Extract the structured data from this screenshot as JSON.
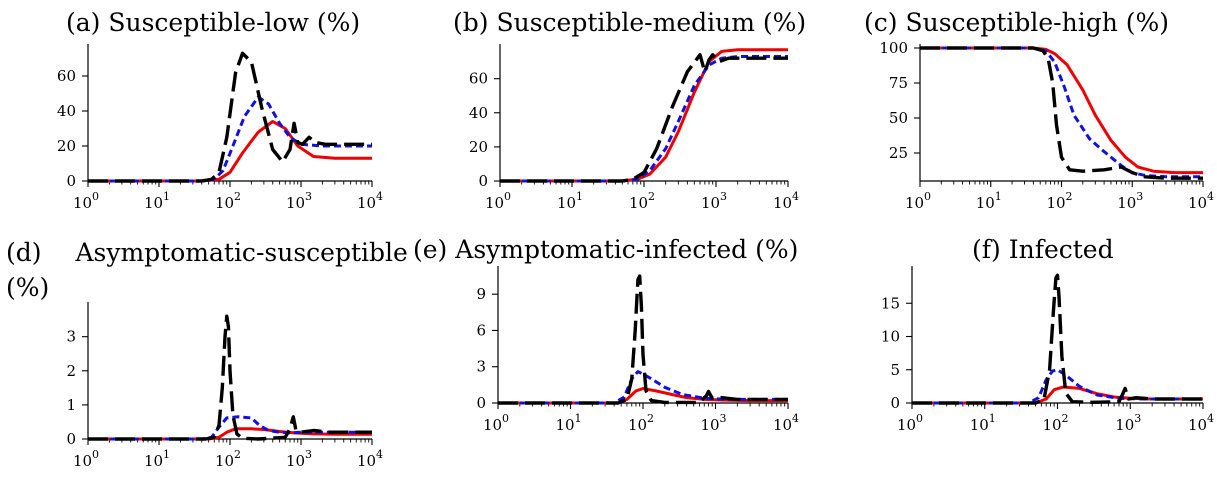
{
  "figure": {
    "layout": "2x3 grid of small multiples",
    "series_styles": [
      {
        "color": "#ee0000",
        "dash": "solid"
      },
      {
        "color": "#1010e0",
        "dash": "short-dash"
      },
      {
        "color": "#000000",
        "dash": "long-dash"
      }
    ]
  },
  "chart_data": [
    {
      "type": "line",
      "title_tag": "(a)",
      "title": "Susceptible-low (%)",
      "xscale": "log",
      "xlim": [
        1,
        10000
      ],
      "xticks": [
        "10^0",
        "10^1",
        "10^2",
        "10^3",
        "10^4"
      ],
      "ylim": [
        0,
        76
      ],
      "yticks": [
        0,
        20,
        40,
        60
      ],
      "series": [
        {
          "color": "#ee0000",
          "dash": "solid",
          "x": [
            1,
            40,
            70,
            100,
            150,
            250,
            400,
            600,
            900,
            1500,
            3000,
            10000
          ],
          "y": [
            0,
            0,
            1,
            5,
            16,
            28,
            34,
            30,
            20,
            14,
            13,
            13
          ]
        },
        {
          "color": "#1010e0",
          "dash": "short-dash",
          "x": [
            1,
            40,
            60,
            80,
            110,
            160,
            250,
            350,
            500,
            700,
            1000,
            2000,
            10000
          ],
          "y": [
            0,
            0,
            1,
            6,
            20,
            37,
            48,
            44,
            33,
            25,
            21,
            20,
            20
          ]
        },
        {
          "color": "#000000",
          "dash": "long-dash",
          "x": [
            1,
            40,
            55,
            70,
            90,
            120,
            150,
            200,
            280,
            400,
            550,
            700,
            800,
            900,
            1050,
            1300,
            1600,
            2200,
            10000
          ],
          "y": [
            0,
            0,
            1,
            5,
            25,
            62,
            73,
            68,
            42,
            18,
            11,
            18,
            33,
            22,
            21,
            25,
            22,
            21,
            21
          ]
        }
      ]
    },
    {
      "type": "line",
      "title_tag": "(b)",
      "title": "Susceptible-medium (%)",
      "xscale": "log",
      "xlim": [
        1,
        10000
      ],
      "xticks": [
        "10^0",
        "10^1",
        "10^2",
        "10^3",
        "10^4"
      ],
      "ylim": [
        0,
        78
      ],
      "yticks": [
        0,
        20,
        40,
        60
      ],
      "series": [
        {
          "color": "#ee0000",
          "dash": "solid",
          "x": [
            1,
            50,
            80,
            120,
            200,
            300,
            500,
            800,
            1200,
            2000,
            4000,
            10000
          ],
          "y": [
            0,
            0,
            1,
            4,
            14,
            29,
            52,
            70,
            76,
            77,
            77,
            77
          ]
        },
        {
          "color": "#1010e0",
          "dash": "short-dash",
          "x": [
            1,
            50,
            80,
            120,
            200,
            300,
            500,
            800,
            1200,
            2000,
            10000
          ],
          "y": [
            0,
            0,
            1,
            6,
            19,
            35,
            56,
            68,
            72,
            73,
            73
          ]
        },
        {
          "color": "#000000",
          "dash": "long-dash",
          "x": [
            1,
            50,
            70,
            100,
            150,
            250,
            400,
            600,
            700,
            800,
            900,
            1100,
            1500,
            2500,
            10000
          ],
          "y": [
            0,
            0,
            1,
            5,
            19,
            44,
            64,
            74,
            64,
            71,
            74,
            70,
            72,
            72,
            72
          ]
        }
      ]
    },
    {
      "type": "line",
      "title_tag": "(c)",
      "title": "Susceptible-high (%)",
      "xscale": "log",
      "xlim": [
        1,
        10000
      ],
      "xticks": [
        "10^0",
        "10^1",
        "10^2",
        "10^3",
        "10^4"
      ],
      "ylim": [
        5,
        100
      ],
      "yticks": [
        25,
        50,
        75,
        100
      ],
      "series": [
        {
          "color": "#ee0000",
          "dash": "solid",
          "x": [
            1,
            40,
            60,
            80,
            120,
            200,
            300,
            500,
            800,
            1200,
            2000,
            4000,
            10000
          ],
          "y": [
            100,
            100,
            99,
            96,
            88,
            70,
            52,
            34,
            22,
            15,
            12,
            11,
            11
          ]
        },
        {
          "color": "#1010e0",
          "dash": "short-dash",
          "x": [
            1,
            40,
            60,
            80,
            110,
            150,
            250,
            400,
            700,
            1000,
            1500,
            3000,
            10000
          ],
          "y": [
            100,
            100,
            98,
            90,
            72,
            52,
            35,
            26,
            16,
            11,
            9,
            8,
            8
          ]
        },
        {
          "color": "#000000",
          "dash": "long-dash",
          "x": [
            1,
            40,
            55,
            65,
            75,
            85,
            100,
            130,
            200,
            400,
            700,
            1000,
            1500,
            3000,
            10000
          ],
          "y": [
            100,
            100,
            98,
            92,
            75,
            45,
            22,
            13,
            12,
            13,
            15,
            11,
            8,
            7,
            7
          ]
        }
      ]
    },
    {
      "type": "line",
      "title_tag": "(d)",
      "title": "Asymptomatic-susceptible (%)",
      "xscale": "log",
      "xlim": [
        1,
        10000
      ],
      "xticks": [
        "10^0",
        "10^1",
        "10^2",
        "10^3",
        "10^4"
      ],
      "ylim": [
        0,
        3.9
      ],
      "yticks": [
        0,
        1,
        2,
        3
      ],
      "series": [
        {
          "color": "#ee0000",
          "dash": "solid",
          "x": [
            1,
            50,
            70,
            90,
            120,
            200,
            300,
            500,
            800,
            1500,
            3000,
            10000
          ],
          "y": [
            0,
            0,
            0.05,
            0.2,
            0.3,
            0.3,
            0.28,
            0.22,
            0.18,
            0.15,
            0.14,
            0.14
          ]
        },
        {
          "color": "#1010e0",
          "dash": "short-dash",
          "x": [
            1,
            40,
            55,
            70,
            90,
            130,
            200,
            260,
            350,
            500,
            700,
            1000,
            2000,
            10000
          ],
          "y": [
            0,
            0,
            0.05,
            0.35,
            0.62,
            0.65,
            0.62,
            0.4,
            0.25,
            0.2,
            0.18,
            0.2,
            0.2,
            0.2
          ]
        },
        {
          "color": "#000000",
          "dash": "long-dash",
          "x": [
            1,
            45,
            60,
            70,
            78,
            85,
            90,
            95,
            100,
            110,
            125,
            150,
            250,
            600,
            700,
            780,
            850,
            1000,
            1500,
            2500,
            10000
          ],
          "y": [
            0,
            0,
            0.05,
            0.4,
            1.5,
            3.0,
            3.6,
            3.3,
            2.0,
            0.7,
            0.15,
            0.02,
            0,
            0.05,
            0.3,
            0.65,
            0.25,
            0.2,
            0.25,
            0.2,
            0.2
          ]
        }
      ]
    },
    {
      "type": "line",
      "title_tag": "(e)",
      "title": "Asymptomatic-infected (%)",
      "xscale": "log",
      "xlim": [
        1,
        10000
      ],
      "xticks": [
        "10^0",
        "10^1",
        "10^2",
        "10^3",
        "10^4"
      ],
      "ylim": [
        0,
        11
      ],
      "yticks": [
        0,
        3,
        6,
        9
      ],
      "series": [
        {
          "color": "#ee0000",
          "dash": "solid",
          "x": [
            1,
            45,
            60,
            80,
            100,
            150,
            250,
            400,
            700,
            1200,
            3000,
            10000
          ],
          "y": [
            0,
            0,
            0.3,
            1.0,
            1.2,
            1.0,
            0.7,
            0.45,
            0.3,
            0.25,
            0.2,
            0.2
          ]
        },
        {
          "color": "#1010e0",
          "dash": "short-dash",
          "x": [
            1,
            40,
            55,
            70,
            85,
            100,
            130,
            200,
            350,
            700,
            1500,
            3000,
            10000
          ],
          "y": [
            0,
            0,
            0.5,
            2.0,
            2.6,
            2.4,
            2.0,
            1.3,
            0.7,
            0.4,
            0.3,
            0.3,
            0.3
          ]
        },
        {
          "color": "#000000",
          "dash": "long-dash",
          "x": [
            1,
            45,
            60,
            70,
            78,
            85,
            90,
            95,
            100,
            110,
            130,
            200,
            600,
            750,
            800,
            900,
            1200,
            2000,
            10000
          ],
          "y": [
            0,
            0,
            0.3,
            2.0,
            6.0,
            10.2,
            10.5,
            8.0,
            4.0,
            1.0,
            0.2,
            0.05,
            0.05,
            0.6,
            0.95,
            0.4,
            0.45,
            0.3,
            0.3
          ]
        }
      ]
    },
    {
      "type": "line",
      "title_tag": "(f)",
      "title": "Infected",
      "xscale": "log",
      "xlim": [
        1,
        10000
      ],
      "xticks": [
        "10^0",
        "10^1",
        "10^2",
        "10^3",
        "10^4"
      ],
      "ylim": [
        0,
        20
      ],
      "yticks": [
        0,
        5,
        10,
        15
      ],
      "series": [
        {
          "color": "#ee0000",
          "dash": "solid",
          "x": [
            1,
            50,
            70,
            90,
            120,
            200,
            350,
            600,
            1000,
            2000,
            5000,
            10000
          ],
          "y": [
            0,
            0,
            0.6,
            2.0,
            2.4,
            2.2,
            1.4,
            0.9,
            0.7,
            0.6,
            0.6,
            0.6
          ]
        },
        {
          "color": "#1010e0",
          "dash": "short-dash",
          "x": [
            1,
            40,
            55,
            70,
            85,
            100,
            130,
            200,
            350,
            700,
            1500,
            10000
          ],
          "y": [
            0,
            0,
            0.8,
            3.5,
            4.8,
            5.0,
            4.2,
            2.5,
            1.2,
            0.7,
            0.6,
            0.6
          ]
        },
        {
          "color": "#000000",
          "dash": "long-dash",
          "x": [
            1,
            50,
            65,
            78,
            88,
            95,
            100,
            105,
            115,
            130,
            160,
            300,
            700,
            800,
            850,
            950,
            1200,
            2000,
            10000
          ],
          "y": [
            0,
            0,
            0.5,
            5.0,
            14.0,
            18.8,
            19.2,
            16.0,
            7.0,
            1.5,
            0.2,
            0.1,
            0.2,
            1.5,
            2.2,
            0.6,
            0.8,
            0.6,
            0.6
          ]
        }
      ]
    }
  ]
}
